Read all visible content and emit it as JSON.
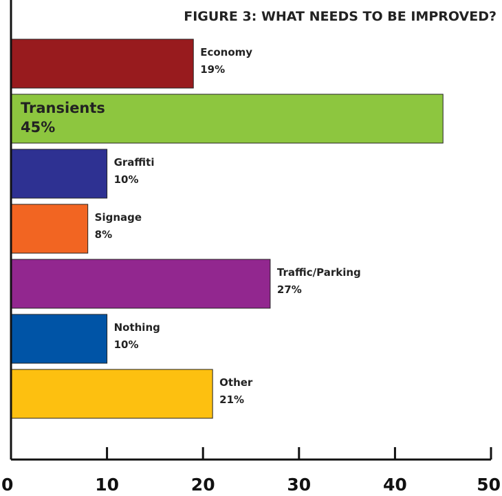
{
  "chart_data": {
    "type": "bar",
    "orientation": "horizontal",
    "title": "FIGURE 3: WHAT NEEDS TO BE IMPROVED?",
    "categories": [
      "Economy",
      "Transients",
      "Graffiti",
      "Signage",
      "Traffic/Parking",
      "Nothing",
      "Other"
    ],
    "values": [
      19,
      45,
      10,
      8,
      27,
      10,
      21
    ],
    "value_labels": [
      "19%",
      "45%",
      "10%",
      "8%",
      "27%",
      "10%",
      "21%"
    ],
    "colors": [
      "#981b1e",
      "#8dc63f",
      "#2e3192",
      "#f26522",
      "#92278f",
      "#0054a6",
      "#fdc010"
    ],
    "label_position": [
      "outside",
      "inside",
      "outside",
      "outside",
      "outside",
      "outside",
      "outside"
    ],
    "xlim": [
      0,
      50
    ],
    "xticks": [
      0,
      10,
      20,
      30,
      40,
      50
    ],
    "xtick_labels": [
      "0",
      "10",
      "20",
      "30",
      "40",
      "50"
    ],
    "grid": false,
    "xlabel": "",
    "ylabel": ""
  }
}
